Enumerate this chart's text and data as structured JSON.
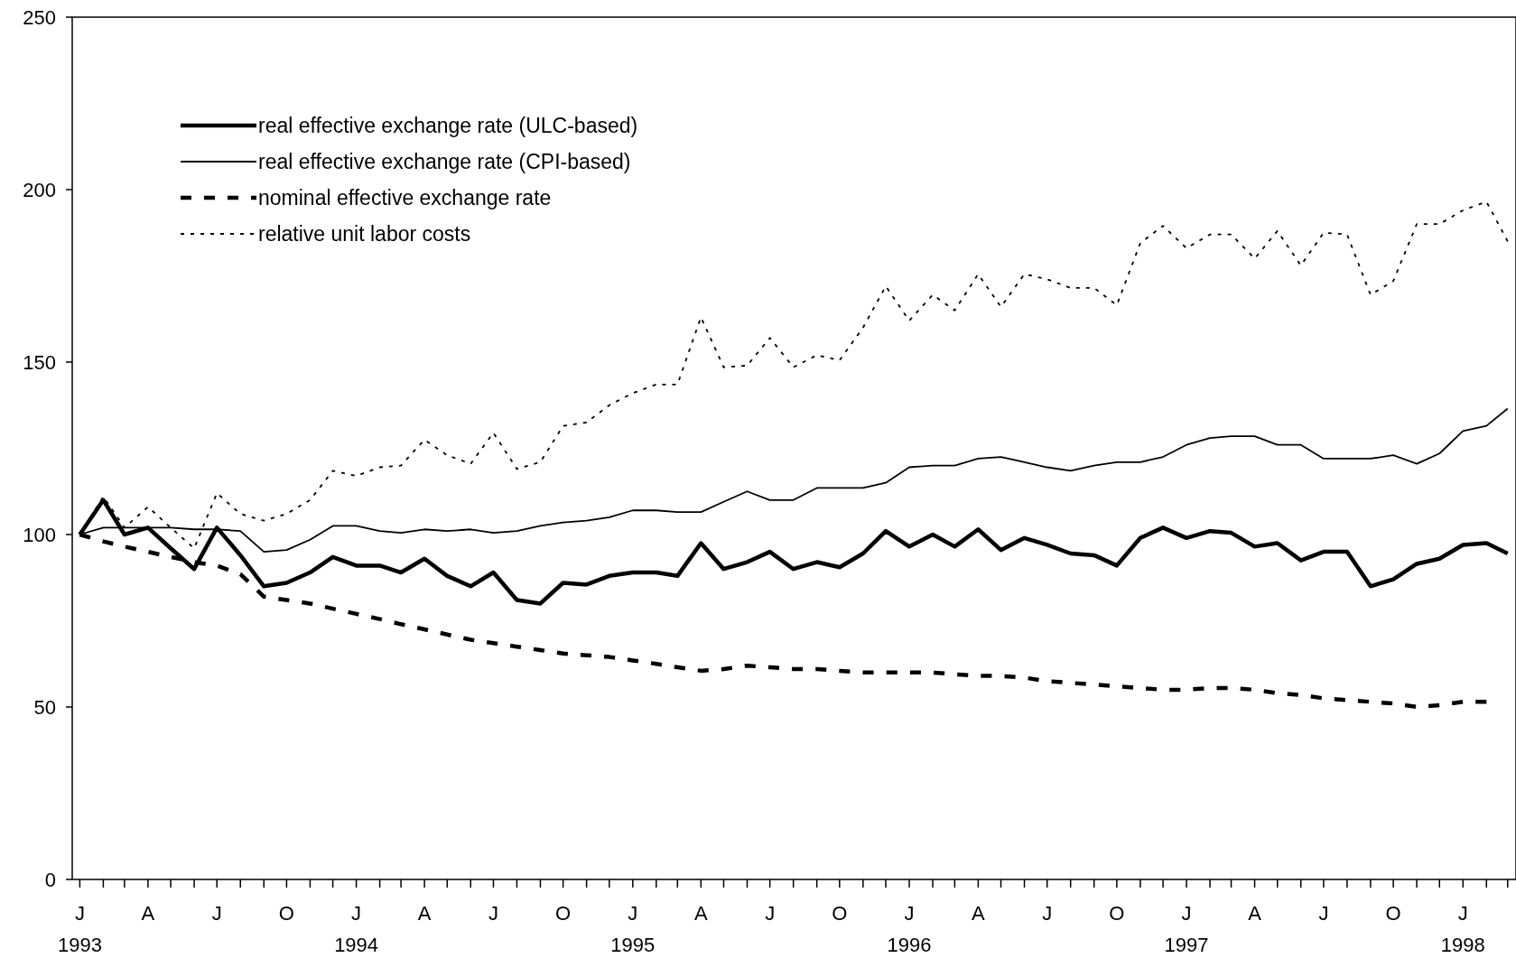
{
  "chart_data": {
    "type": "line",
    "x": [
      "1993-01",
      "1993-02",
      "1993-03",
      "1993-04",
      "1993-05",
      "1993-06",
      "1993-07",
      "1993-08",
      "1993-09",
      "1993-10",
      "1993-11",
      "1993-12",
      "1994-01",
      "1994-02",
      "1994-03",
      "1994-04",
      "1994-05",
      "1994-06",
      "1994-07",
      "1994-08",
      "1994-09",
      "1994-10",
      "1994-11",
      "1994-12",
      "1995-01",
      "1995-02",
      "1995-03",
      "1995-04",
      "1995-05",
      "1995-06",
      "1995-07",
      "1995-08",
      "1995-09",
      "1995-10",
      "1995-11",
      "1995-12",
      "1996-01",
      "1996-02",
      "1996-03",
      "1996-04",
      "1996-05",
      "1996-06",
      "1996-07",
      "1996-08",
      "1996-09",
      "1996-10",
      "1996-11",
      "1996-12",
      "1997-01",
      "1997-02",
      "1997-03",
      "1997-04",
      "1997-05",
      "1997-06",
      "1997-07",
      "1997-08",
      "1997-09",
      "1997-10",
      "1997-11",
      "1997-12",
      "1998-01",
      "1998-02",
      "1998-03"
    ],
    "series": [
      {
        "name": "real effective exchange rate (ULC-based)",
        "color": "#000000",
        "line_style": "solid",
        "values": [
          100,
          110,
          100,
          102,
          96,
          90,
          102,
          94,
          85,
          86,
          89,
          93.5,
          91,
          91,
          89,
          93,
          88,
          85,
          89,
          81,
          80,
          86,
          85.5,
          88,
          89,
          89,
          88,
          97.5,
          90,
          92,
          95,
          90,
          92,
          90.5,
          94.5,
          101,
          96.5,
          100,
          96.5,
          101.5,
          95.5,
          99,
          97,
          94.5,
          94,
          91,
          99,
          102,
          99,
          101,
          100.5,
          96.5,
          97.5,
          92.5,
          95,
          95,
          85,
          87,
          91.5,
          93,
          97,
          97.5,
          94.5
        ]
      },
      {
        "name": "real effective exchange rate (CPI-based)",
        "color": "#000000",
        "line_style": "solid",
        "values": [
          100,
          102,
          102,
          102,
          102,
          101.5,
          101.5,
          101,
          95,
          95.5,
          98.5,
          102.5,
          102.5,
          101,
          100.5,
          101.5,
          101,
          101.5,
          100.5,
          101,
          102.5,
          103.5,
          104,
          105,
          107,
          107,
          106.5,
          106.5,
          109.5,
          112.5,
          110,
          110,
          113.5,
          113.5,
          113.5,
          115,
          119.5,
          120,
          120,
          122,
          122.5,
          121,
          119.5,
          118.5,
          120,
          121,
          121,
          122.5,
          126,
          128,
          128.5,
          128.5,
          126,
          126,
          122,
          122,
          122,
          123,
          120.5,
          123.5,
          130,
          131.5,
          136.5
        ]
      },
      {
        "name": "nominal effective exchange rate",
        "color": "#000000",
        "line_style": "dashed",
        "values": [
          100,
          98,
          96.5,
          95,
          93.5,
          92,
          91,
          88.5,
          82,
          81,
          80,
          78.5,
          77,
          75.5,
          74,
          72.5,
          71,
          69.5,
          68.5,
          67.5,
          66.5,
          65.5,
          65,
          64.5,
          63.5,
          62.5,
          61.5,
          60.5,
          61,
          62,
          61.5,
          61,
          61,
          60.5,
          60,
          60,
          60,
          60,
          59.5,
          59,
          59,
          58.5,
          57.5,
          57,
          56.5,
          56,
          55.5,
          55,
          55,
          55.5,
          55.5,
          55,
          54,
          53.5,
          52.5,
          52,
          51.5,
          51,
          50,
          50.5,
          51.5,
          51.5,
          null
        ]
      },
      {
        "name": "relative unit labor costs",
        "color": "#000000",
        "line_style": "dotted",
        "values": [
          100,
          111,
          102,
          108,
          102,
          96,
          112,
          106,
          104,
          106,
          110,
          118.5,
          117,
          119.5,
          120,
          127.5,
          123,
          120.5,
          129.5,
          119,
          121,
          131.5,
          132.5,
          137.5,
          141,
          143.5,
          143.5,
          163,
          148.5,
          149,
          157,
          148.5,
          152,
          150.5,
          160,
          172,
          162,
          169.5,
          165,
          175.5,
          166,
          175.5,
          174,
          171.5,
          171.5,
          166.5,
          184.5,
          189.5,
          183,
          187,
          187,
          180,
          188,
          178,
          187.5,
          187,
          169.5,
          173.5,
          190,
          190,
          194,
          196.5,
          185
        ]
      }
    ],
    "xlim": [
      "1992-12-22",
      "1998-03-12"
    ],
    "xticks": [
      {
        "value": "1993-01",
        "label": "J 1993"
      },
      {
        "value": "1993-02",
        "label": null
      },
      {
        "value": "1993-03",
        "label": null
      },
      {
        "value": "1993-04",
        "label": "A"
      },
      {
        "value": "1993-05",
        "label": null
      },
      {
        "value": "1993-06",
        "label": null
      },
      {
        "value": "1993-07",
        "label": "J"
      },
      {
        "value": "1993-08",
        "label": null
      },
      {
        "value": "1993-09",
        "label": null
      },
      {
        "value": "1993-10",
        "label": "O"
      },
      {
        "value": "1993-11",
        "label": null
      },
      {
        "value": "1993-12",
        "label": null
      },
      {
        "value": "1994-01",
        "label": "J 1994"
      },
      {
        "value": "1994-02",
        "label": null
      },
      {
        "value": "1994-03",
        "label": null
      },
      {
        "value": "1994-04",
        "label": "A"
      },
      {
        "value": "1994-05",
        "label": null
      },
      {
        "value": "1994-06",
        "label": null
      },
      {
        "value": "1994-07",
        "label": "J"
      },
      {
        "value": "1994-08",
        "label": null
      },
      {
        "value": "1994-09",
        "label": null
      },
      {
        "value": "1994-10",
        "label": "O"
      },
      {
        "value": "1994-11",
        "label": null
      },
      {
        "value": "1994-12",
        "label": null
      },
      {
        "value": "1995-01",
        "label": "J 1995"
      },
      {
        "value": "1995-02",
        "label": null
      },
      {
        "value": "1995-03",
        "label": null
      },
      {
        "value": "1995-04",
        "label": "A"
      },
      {
        "value": "1995-05",
        "label": null
      },
      {
        "value": "1995-06",
        "label": null
      },
      {
        "value": "1995-07",
        "label": "J"
      },
      {
        "value": "1995-08",
        "label": null
      },
      {
        "value": "1995-09",
        "label": null
      },
      {
        "value": "1995-10",
        "label": "O"
      },
      {
        "value": "1995-11",
        "label": null
      },
      {
        "value": "1995-12",
        "label": null
      },
      {
        "value": "1996-01",
        "label": "J 1996"
      },
      {
        "value": "1996-02",
        "label": null
      },
      {
        "value": "1996-03",
        "label": null
      },
      {
        "value": "1996-04",
        "label": "A"
      },
      {
        "value": "1996-05",
        "label": null
      },
      {
        "value": "1996-06",
        "label": null
      },
      {
        "value": "1996-07",
        "label": "J"
      },
      {
        "value": "1996-08",
        "label": null
      },
      {
        "value": "1996-09",
        "label": null
      },
      {
        "value": "1996-10",
        "label": "O"
      },
      {
        "value": "1996-11",
        "label": null
      },
      {
        "value": "1996-12",
        "label": null
      },
      {
        "value": "1997-01",
        "label": "J 1997"
      },
      {
        "value": "1997-02",
        "label": null
      },
      {
        "value": "1997-03",
        "label": null
      },
      {
        "value": "1997-04",
        "label": "A"
      },
      {
        "value": "1997-05",
        "label": null
      },
      {
        "value": "1997-06",
        "label": null
      },
      {
        "value": "1997-07",
        "label": "J"
      },
      {
        "value": "1997-08",
        "label": null
      },
      {
        "value": "1997-09",
        "label": null
      },
      {
        "value": "1997-10",
        "label": "O"
      },
      {
        "value": "1997-11",
        "label": null
      },
      {
        "value": "1997-12",
        "label": null
      },
      {
        "value": "1998-01",
        "label": "J 1998"
      },
      {
        "value": "1998-02",
        "label": null
      },
      {
        "value": "1998-03",
        "label": null
      }
    ],
    "ylim": [
      0,
      250
    ],
    "yticks": [
      0,
      50,
      100,
      150,
      200,
      250
    ],
    "grid": false,
    "legend": "top left",
    "marker": "none"
  }
}
